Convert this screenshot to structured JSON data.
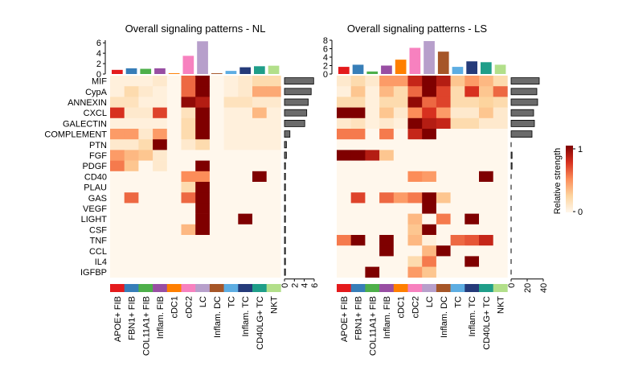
{
  "chart_data": {
    "type": "heatmap",
    "legend": {
      "title": "Relative strength",
      "ticks": [
        "1",
        "0"
      ],
      "colors": [
        "#FFF7EC",
        "#FDD49E",
        "#FC8D59",
        "#D7301F",
        "#7F0000"
      ],
      "placement": "right"
    },
    "rows": [
      "MIF",
      "CypA",
      "ANNEXIN",
      "CXCL",
      "GALECTIN",
      "COMPLEMENT",
      "PTN",
      "FGF",
      "PDGF",
      "CD40",
      "PLAU",
      "GAS",
      "VEGF",
      "LIGHT",
      "CSF",
      "TNF",
      "CCL",
      "IL4",
      "IGFBP"
    ],
    "columns": [
      "APOE+ FIB",
      "FBN1+ FIB",
      "COL11A1+ FIB",
      "Inflam. FIB",
      "cDC1",
      "cDC2",
      "LC",
      "Inflam. DC",
      "TC",
      "Inflam. TC",
      "CD40LG+ TC",
      "NKT"
    ],
    "column_colors": [
      "#E41A1C",
      "#377EB8",
      "#4DAF4A",
      "#984EA3",
      "#FF7F00",
      "#F781BF",
      "#B79FCB",
      "#A65628",
      "#5DADE2",
      "#253B7A",
      "#1F9E89",
      "#B2DF8A"
    ],
    "panels": [
      {
        "title": "Overall signaling patterns - NL",
        "top_bars": [
          0.8,
          1.1,
          1.0,
          1.1,
          0.15,
          3.5,
          6.3,
          0.15,
          0.6,
          1.3,
          1.5,
          1.6
        ],
        "top_ticks": [
          "0",
          "2",
          "4",
          "6"
        ],
        "top_max": 6.5,
        "right_bars": [
          5.9,
          5.4,
          4.8,
          4.5,
          4.1,
          1.1,
          0.4,
          0.4,
          0.2,
          0.15,
          0.1,
          0.1,
          0.1,
          0.1,
          0.1,
          0.1,
          0.1,
          0.1,
          0.1
        ],
        "right_ticks": [
          "0",
          "2",
          "4",
          "6"
        ],
        "right_max": 6.5,
        "values": [
          [
            0.05,
            0.05,
            0.05,
            0.1,
            0,
            0.6,
            1.0,
            0,
            0.05,
            0.1,
            0.2,
            0.2
          ],
          [
            0.05,
            0.2,
            0.1,
            0.05,
            0,
            0.6,
            1.0,
            0,
            0.05,
            0.1,
            0.4,
            0.4
          ],
          [
            0.15,
            0.15,
            0.05,
            0.05,
            0,
            0.95,
            0.85,
            0,
            0.15,
            0.15,
            0.1,
            0.1
          ],
          [
            0.75,
            0.1,
            0.1,
            0.7,
            0,
            0.15,
            1.0,
            0,
            0.05,
            0.05,
            0.35,
            0.05
          ],
          [
            0.05,
            0.05,
            0.05,
            0.05,
            0,
            0.2,
            1.0,
            0,
            0.05,
            0.05,
            0.05,
            0.05
          ],
          [
            0.45,
            0.45,
            0.1,
            0.45,
            0,
            0.2,
            1.0,
            0,
            0.05,
            0.05,
            0.05,
            0.05
          ],
          [
            0.1,
            0.1,
            0.2,
            1.0,
            0,
            0.1,
            0.2,
            0,
            0.05,
            0.05,
            0.05,
            0.05
          ],
          [
            0.45,
            0.35,
            0.3,
            0.1,
            0,
            0,
            0,
            0,
            0,
            0,
            0,
            0
          ],
          [
            0.55,
            0.3,
            0,
            0.1,
            0,
            0,
            1.0,
            0,
            0,
            0,
            0,
            0
          ],
          [
            0,
            0,
            0,
            0,
            0,
            0.5,
            0.5,
            0,
            0,
            0,
            1.0,
            0
          ],
          [
            0,
            0,
            0,
            0,
            0,
            0.2,
            1.0,
            0,
            0,
            0,
            0,
            0
          ],
          [
            0,
            0.6,
            0,
            0,
            0,
            0.6,
            1.0,
            0,
            0,
            0,
            0,
            0
          ],
          [
            0,
            0,
            0,
            0,
            0,
            0,
            1.0,
            0,
            0,
            0,
            0,
            0
          ],
          [
            0,
            0,
            0,
            0,
            0,
            0,
            1.0,
            0,
            0,
            1.0,
            0,
            0
          ],
          [
            0,
            0,
            0,
            0,
            0,
            0.35,
            1.0,
            0,
            0,
            0,
            0,
            0
          ],
          [
            0,
            0,
            0,
            0,
            0,
            0,
            0,
            0,
            0,
            0,
            0,
            0
          ],
          [
            0,
            0,
            0,
            0,
            0,
            0,
            0,
            0,
            0,
            0,
            0,
            0
          ],
          [
            0,
            0,
            0,
            0,
            0,
            0,
            0,
            0,
            0,
            0,
            0,
            0
          ],
          [
            0,
            0,
            0,
            0,
            0,
            0,
            0,
            0,
            0,
            0,
            0,
            0
          ]
        ]
      },
      {
        "title": "Overall signaling patterns - LS",
        "top_bars": [
          1.7,
          2.2,
          0.6,
          2.0,
          3.4,
          6.2,
          7.8,
          5.3,
          1.7,
          3.0,
          2.8,
          2.2
        ],
        "top_ticks": [
          "0",
          "2",
          "4",
          "6",
          "8"
        ],
        "top_max": 8,
        "right_bars": [
          35,
          32,
          33,
          28,
          29,
          26,
          0,
          1.0,
          0.4,
          0,
          0,
          0,
          0,
          0,
          0,
          0,
          0,
          0,
          0
        ],
        "right_ticks": [
          "0",
          "20",
          "40"
        ],
        "right_max": 40,
        "values": [
          [
            0.1,
            0.2,
            0.1,
            0.45,
            0.45,
            0.8,
            1.0,
            0.85,
            0.3,
            0.45,
            0.35,
            0.2
          ],
          [
            0.05,
            0.3,
            0.05,
            0.35,
            0.2,
            0.6,
            1.0,
            0.7,
            0.2,
            0.75,
            0.3,
            0.6
          ],
          [
            0.2,
            0.2,
            0.05,
            0.2,
            0.2,
            0.95,
            0.6,
            0.7,
            0.2,
            0.2,
            0.25,
            0.2
          ],
          [
            1.0,
            1.0,
            0.05,
            0.3,
            0.1,
            0.5,
            0.75,
            0.45,
            0.1,
            0.1,
            0.3,
            0.1
          ],
          [
            0.1,
            0.15,
            0.05,
            0.1,
            0.05,
            1.0,
            0.85,
            0.8,
            0.2,
            0.2,
            0.1,
            0.1
          ],
          [
            0.55,
            0.55,
            0,
            0.55,
            0,
            0.8,
            1.0,
            0,
            0,
            0,
            0,
            0
          ],
          [
            0,
            0,
            0,
            0,
            0,
            0,
            0,
            0,
            0,
            0,
            0,
            0
          ],
          [
            1.0,
            1.0,
            0.85,
            0.3,
            0,
            0,
            0,
            0,
            0,
            0,
            0,
            0
          ],
          [
            0,
            0,
            0,
            0,
            0,
            0,
            0,
            0,
            0,
            0,
            0,
            0
          ],
          [
            0,
            0,
            0,
            0,
            0,
            0.5,
            0.45,
            0,
            0,
            0,
            1.0,
            0
          ],
          [
            0,
            0,
            0,
            0,
            0,
            0,
            0,
            0,
            0,
            0,
            0,
            0
          ],
          [
            0,
            0.7,
            0,
            0.6,
            0.45,
            0.55,
            1.0,
            0.3,
            0,
            0,
            0,
            0
          ],
          [
            0,
            0,
            0,
            0,
            0,
            0,
            1.0,
            0,
            0,
            0,
            0,
            0
          ],
          [
            0,
            0,
            0,
            0,
            0,
            0.35,
            0,
            0.55,
            0,
            1.0,
            0,
            0
          ],
          [
            0,
            0,
            0,
            0,
            0,
            0.3,
            1.0,
            0,
            0,
            0,
            0,
            0
          ],
          [
            0.55,
            1.0,
            0,
            1.0,
            0,
            0.35,
            0.05,
            0,
            0.6,
            0.65,
            0.8,
            0
          ],
          [
            0,
            0,
            0,
            1.0,
            0,
            0,
            0.35,
            1.0,
            0,
            0,
            0,
            0
          ],
          [
            0,
            0,
            0,
            0,
            0,
            0.2,
            0.55,
            0,
            0,
            1.0,
            0,
            0
          ],
          [
            0,
            0,
            1.0,
            0,
            0,
            0.45,
            0.3,
            0,
            0,
            0,
            0,
            0
          ]
        ]
      }
    ]
  }
}
